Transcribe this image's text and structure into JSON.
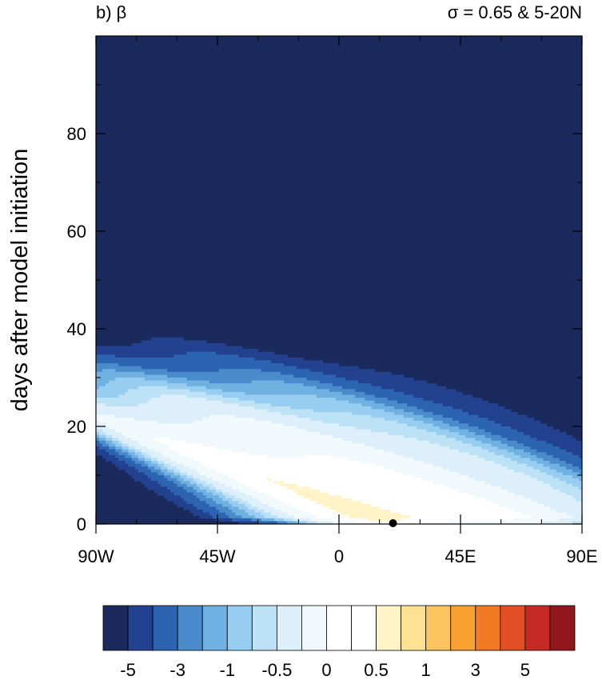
{
  "chart_data": {
    "type": "heatmap",
    "title_left": "b) β",
    "title_right": "σ  = 0.65 & 5-20N",
    "ylabel": "days after model initiation",
    "xlabel": "",
    "x_ticks": [
      {
        "value": -90,
        "label": "90W"
      },
      {
        "value": -45,
        "label": "45W"
      },
      {
        "value": 0,
        "label": "0"
      },
      {
        "value": 45,
        "label": "45E"
      },
      {
        "value": 90,
        "label": "90E"
      }
    ],
    "y_ticks": [
      {
        "value": 0,
        "label": "0"
      },
      {
        "value": 20,
        "label": "20"
      },
      {
        "value": 40,
        "label": "40"
      },
      {
        "value": 60,
        "label": "60"
      },
      {
        "value": 80,
        "label": "80"
      }
    ],
    "xlim": [
      -90,
      90
    ],
    "ylim": [
      0,
      100
    ],
    "source_marker": {
      "x": 20,
      "y": 0
    },
    "colorbar": {
      "colors": [
        "#1b2a5c",
        "#22418f",
        "#2d64b1",
        "#4a8ccb",
        "#6fb1e0",
        "#97cdf0",
        "#bde2f6",
        "#dceffa",
        "#f2f9fd",
        "#ffffff",
        "#ffffff",
        "#fff3c8",
        "#fde293",
        "#fcc45e",
        "#f8a130",
        "#f17a25",
        "#e24f26",
        "#c62a27",
        "#8f171d"
      ],
      "labels": [
        {
          "slot": 1,
          "label": "-5"
        },
        {
          "slot": 3,
          "label": "-3"
        },
        {
          "slot": 5,
          "label": "-1"
        },
        {
          "slot": 7,
          "label": "-0.5"
        },
        {
          "slot": 9,
          "label": "0"
        },
        {
          "slot": 11,
          "label": "0.5"
        },
        {
          "slot": 13,
          "label": "1"
        },
        {
          "slot": 15,
          "label": "3"
        },
        {
          "slot": 17,
          "label": "5"
        }
      ]
    }
  }
}
